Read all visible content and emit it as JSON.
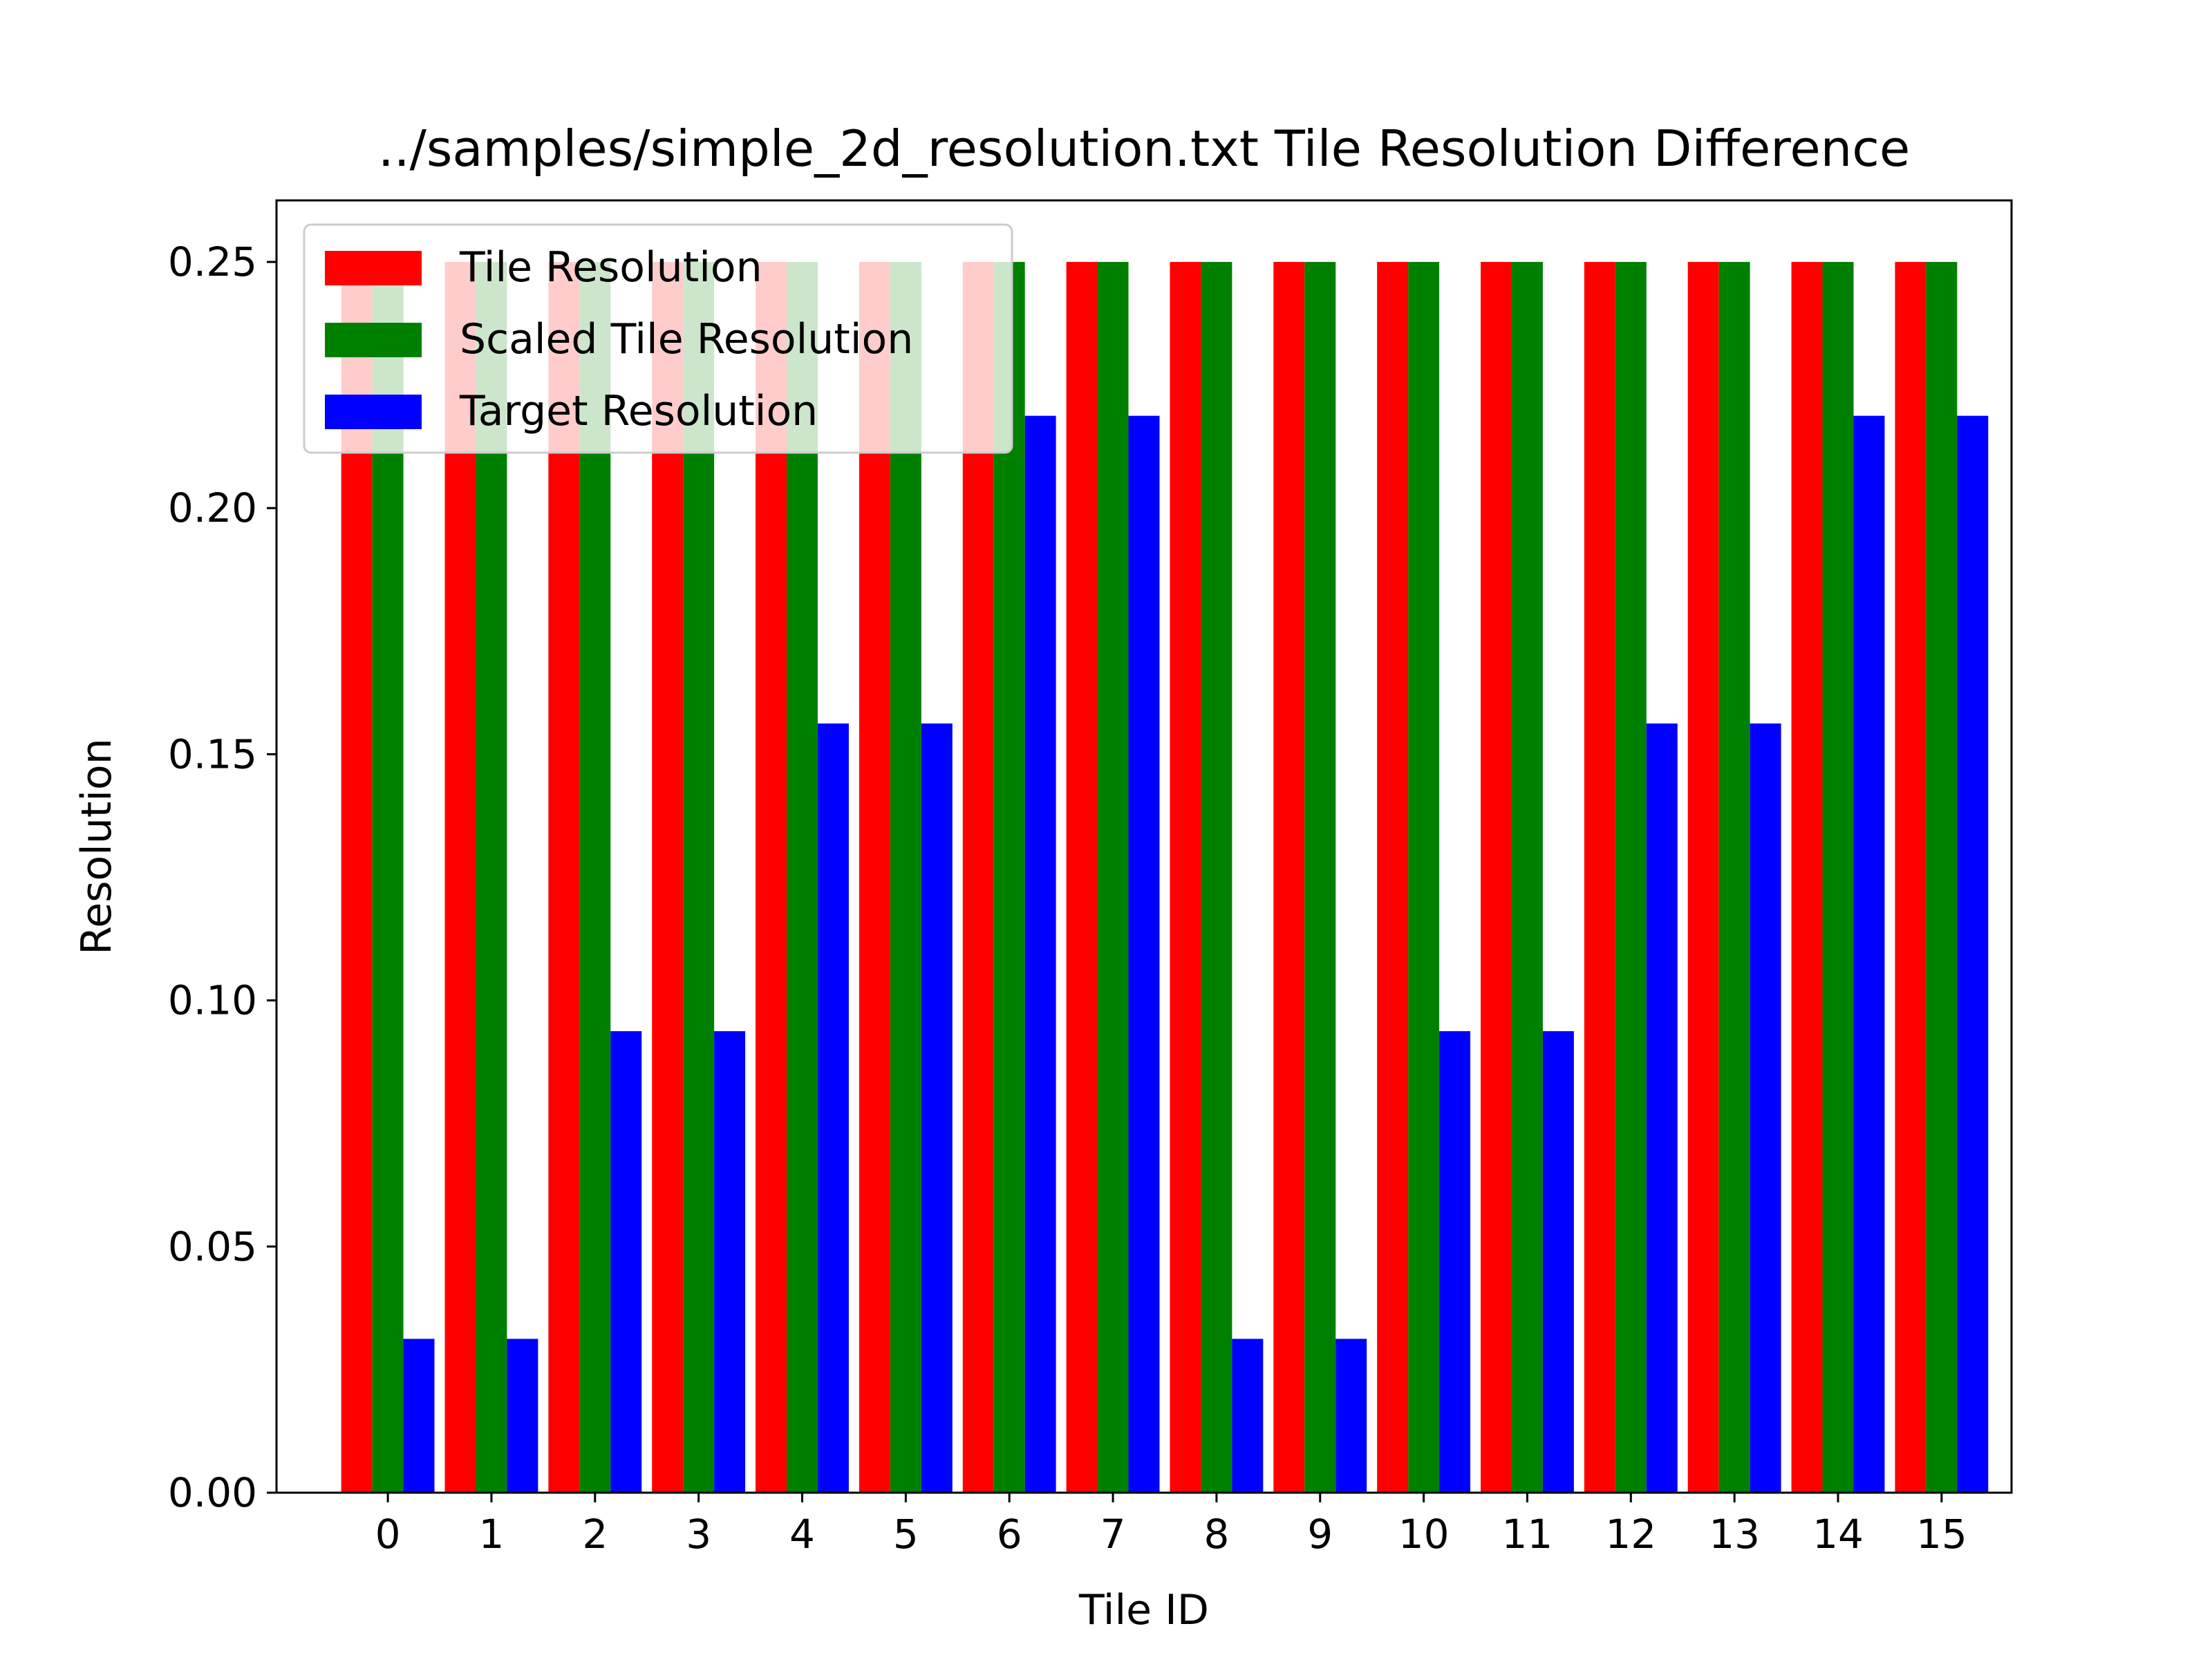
{
  "chart_data": {
    "type": "bar",
    "title": "../samples/simple_2d_resolution.txt Tile Resolution Difference",
    "xlabel": "Tile ID",
    "ylabel": "Resolution",
    "categories": [
      "0",
      "1",
      "2",
      "3",
      "4",
      "5",
      "6",
      "7",
      "8",
      "9",
      "10",
      "11",
      "12",
      "13",
      "14",
      "15"
    ],
    "series": [
      {
        "name": "Tile Resolution",
        "color": "#ff0000",
        "values": [
          0.25,
          0.25,
          0.25,
          0.25,
          0.25,
          0.25,
          0.25,
          0.25,
          0.25,
          0.25,
          0.25,
          0.25,
          0.25,
          0.25,
          0.25,
          0.25
        ]
      },
      {
        "name": "Scaled Tile Resolution",
        "color": "#008000",
        "values": [
          0.25,
          0.25,
          0.25,
          0.25,
          0.25,
          0.25,
          0.25,
          0.25,
          0.25,
          0.25,
          0.25,
          0.25,
          0.25,
          0.25,
          0.25,
          0.25
        ]
      },
      {
        "name": "Target Resolution",
        "color": "#0000ff",
        "values": [
          0.03125,
          0.03125,
          0.09375,
          0.09375,
          0.15625,
          0.15625,
          0.21875,
          0.21875,
          0.03125,
          0.03125,
          0.09375,
          0.09375,
          0.15625,
          0.15625,
          0.21875,
          0.21875
        ]
      }
    ],
    "ylim": [
      0,
      0.2625
    ],
    "yticks": [
      "0.00",
      "0.05",
      "0.10",
      "0.15",
      "0.20",
      "0.25"
    ],
    "grid": false,
    "legend_position": "top-left"
  }
}
